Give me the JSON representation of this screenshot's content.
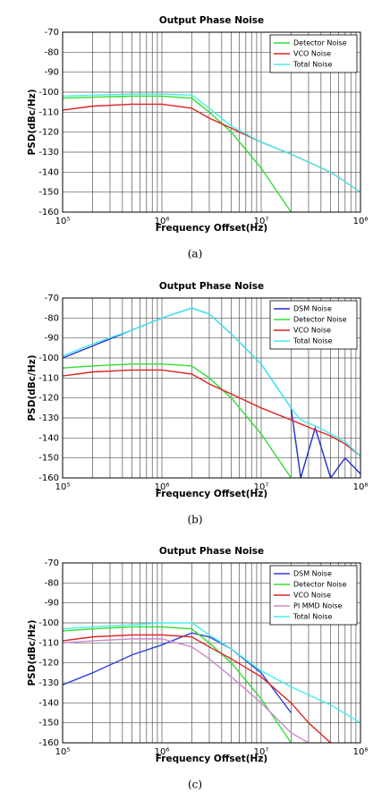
{
  "chart_data": [
    {
      "type": "line",
      "title": "Output Phase Noise",
      "x_label": "Frequency Offset(Hz)",
      "y_label": "PSD(dBc/Hz)",
      "caption": "(a)",
      "log_x": true,
      "grid": true,
      "legend": "upper right",
      "xlim": [
        100000,
        100000000
      ],
      "ylim": [
        -160,
        -70
      ],
      "xticks": [
        {
          "value": 100000,
          "label": "10⁵"
        },
        {
          "value": 1000000,
          "label": "10⁶"
        },
        {
          "value": 10000000,
          "label": "10⁷"
        },
        {
          "value": 100000000,
          "label": "10⁸"
        }
      ],
      "yticks": [
        -160,
        -150,
        -140,
        -130,
        -120,
        -110,
        -100,
        -90,
        -80,
        -70
      ],
      "x": [
        100000,
        200000,
        500000,
        1000000,
        2000000,
        3000000,
        5000000,
        10000000,
        20000000,
        50000000,
        100000000
      ],
      "series": [
        {
          "name": "Detector Noise",
          "color": "#33dd33",
          "values": [
            -103,
            -102.5,
            -102,
            -102,
            -103,
            -110,
            -120,
            -138,
            -160,
            null,
            null
          ]
        },
        {
          "name": "VCO Noise",
          "color": "#dd2222",
          "values": [
            -109,
            -107,
            -106,
            -106,
            -108,
            -113,
            -118,
            -125,
            -131,
            -140,
            -150
          ]
        },
        {
          "name": "Total Noise",
          "color": "#44eeee",
          "values": [
            -102,
            -101.5,
            -101,
            -101,
            -101.5,
            -108,
            -117,
            -125,
            -131,
            -140,
            -150
          ]
        }
      ]
    },
    {
      "type": "line",
      "title": "Output Phase Noise",
      "x_label": "Frequency Offset(Hz)",
      "y_label": "PSD(dBc/Hz)",
      "caption": "(b)",
      "log_x": true,
      "grid": true,
      "legend": "upper right",
      "xlim": [
        100000,
        100000000
      ],
      "ylim": [
        -160,
        -70
      ],
      "xticks": [
        {
          "value": 100000,
          "label": "10⁵"
        },
        {
          "value": 1000000,
          "label": "10⁶"
        },
        {
          "value": 10000000,
          "label": "10⁷"
        },
        {
          "value": 100000000,
          "label": "10⁸"
        }
      ],
      "yticks": [
        -160,
        -150,
        -140,
        -130,
        -120,
        -110,
        -100,
        -90,
        -80,
        -70
      ],
      "x": [
        100000,
        200000,
        500000,
        1000000,
        2000000,
        3000000,
        5000000,
        10000000,
        20000000,
        25000000,
        35000000,
        50000000,
        70000000,
        100000000
      ],
      "series": [
        {
          "name": "DSM Noise",
          "color": "#1f2fd0",
          "values": [
            -100,
            -94,
            -86,
            -80,
            -75,
            -78,
            -88,
            -103,
            -125,
            -160,
            -135,
            -160,
            -150,
            -158
          ]
        },
        {
          "name": "Detector Noise",
          "color": "#33dd33",
          "values": [
            -105,
            -104,
            -103,
            -103,
            -104,
            -110,
            -120,
            -138,
            -160,
            null,
            null,
            null,
            null,
            null
          ]
        },
        {
          "name": "VCO Noise",
          "color": "#dd2222",
          "values": [
            -109,
            -107,
            -106,
            -106,
            -108,
            -113,
            -118,
            -125,
            -131,
            -133,
            -136,
            -139,
            -143,
            -149
          ]
        },
        {
          "name": "Total Noise",
          "color": "#44eeee",
          "values": [
            -99,
            -93,
            -86,
            -80,
            -75,
            -78,
            -88,
            -103,
            -125,
            -131,
            -134,
            -138,
            -142,
            -149
          ]
        }
      ]
    },
    {
      "type": "line",
      "title": "Output Phase Noise",
      "x_label": "Frequency Offset(Hz)",
      "y_label": "PSD(dBc/Hz)",
      "caption": "(c)",
      "log_x": true,
      "grid": true,
      "legend": "upper right",
      "xlim": [
        100000,
        100000000
      ],
      "ylim": [
        -160,
        -70
      ],
      "xticks": [
        {
          "value": 100000,
          "label": "10⁵"
        },
        {
          "value": 1000000,
          "label": "10⁶"
        },
        {
          "value": 10000000,
          "label": "10⁷"
        },
        {
          "value": 100000000,
          "label": "10⁸"
        }
      ],
      "yticks": [
        -160,
        -150,
        -140,
        -130,
        -120,
        -110,
        -100,
        -90,
        -80,
        -70
      ],
      "x": [
        100000,
        200000,
        500000,
        1000000,
        2000000,
        3000000,
        5000000,
        10000000,
        20000000,
        30000000,
        50000000,
        100000000
      ],
      "series": [
        {
          "name": "DSM Noise",
          "color": "#2f3fd8",
          "values": [
            -131,
            -125,
            -116,
            -111,
            -105,
            -107,
            -113,
            -125,
            -145,
            null,
            null,
            null
          ]
        },
        {
          "name": "Detector Noise",
          "color": "#33dd33",
          "values": [
            -104,
            -103,
            -102,
            -102,
            -103,
            -110,
            -120,
            -138,
            -160,
            null,
            null,
            null
          ]
        },
        {
          "name": "VCO Noise",
          "color": "#dd2222",
          "values": [
            -109,
            -107,
            -106,
            -106,
            -107,
            -112,
            -118,
            -127,
            -140,
            -150,
            -160,
            null
          ]
        },
        {
          "name": "PI MMD Noise",
          "color": "#cc88cc",
          "values": [
            -110,
            -109,
            -108,
            -108,
            -112,
            -118,
            -127,
            -140,
            -155,
            -160,
            null,
            null
          ]
        },
        {
          "name": "Total Noise",
          "color": "#44eeee",
          "values": [
            -103,
            -102,
            -101,
            -100,
            -100,
            -106,
            -113,
            -124,
            -132,
            -136,
            -141,
            -150
          ]
        }
      ]
    }
  ]
}
